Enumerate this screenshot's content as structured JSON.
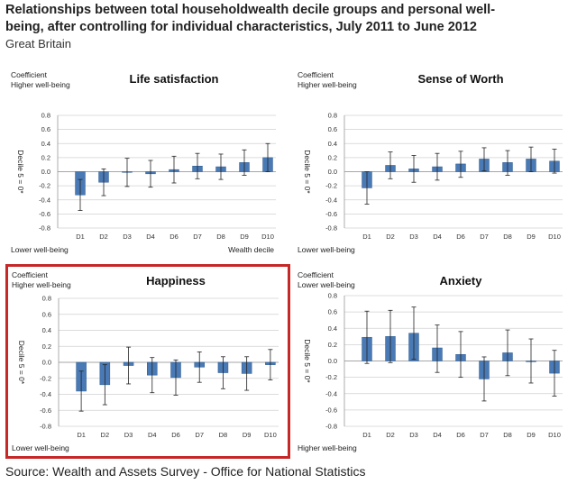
{
  "title": "Relationships between total householdwealth decile groups and personal well-being, after controlling for individual characteristics, July 2011 to June 2012",
  "subtitle": "Great Britain",
  "source": "Source: Wealth and Assets Survey - Office for National Statistics",
  "highlight_color": "#c62828",
  "bar_color": "#4a7ab5",
  "chart_data": [
    {
      "type": "bar",
      "title": "Life satisfaction",
      "ylabel": "Decile 5 = 0*",
      "top_label_1": "Coefficient",
      "top_label_2": "Higher well-being",
      "bottom_label": "Lower well-being",
      "xlabel": "Wealth decile",
      "categories": [
        "D1",
        "D2",
        "D3",
        "D4",
        "D6",
        "D7",
        "D8",
        "D9",
        "D10"
      ],
      "values": [
        -0.33,
        -0.15,
        -0.01,
        -0.03,
        0.03,
        0.08,
        0.07,
        0.13,
        0.2
      ],
      "error_low": [
        -0.55,
        -0.34,
        -0.21,
        -0.22,
        -0.16,
        -0.1,
        -0.11,
        -0.05,
        0.0
      ],
      "error_high": [
        -0.11,
        0.04,
        0.19,
        0.16,
        0.22,
        0.26,
        0.25,
        0.31,
        0.4
      ],
      "ylim": [
        -0.8,
        0.8
      ],
      "yticks": [
        0.8,
        0.6,
        0.4,
        0.2,
        0.0,
        -0.2,
        -0.4,
        -0.6,
        -0.8
      ],
      "ytick_labels": [
        "0.8",
        "0.6",
        "0.4",
        "0.2",
        "0.0",
        "-0.2",
        "-0.4",
        "-0.6",
        "-0.8"
      ],
      "highlighted": false
    },
    {
      "type": "bar",
      "title": "Sense of Worth",
      "ylabel": "Decile 5 = 0*",
      "top_label_1": "Coefficient",
      "top_label_2": "Higher well-being",
      "bottom_label": "Lower well-being",
      "xlabel": "",
      "categories": [
        "D1",
        "D2",
        "D3",
        "D4",
        "D6",
        "D7",
        "D8",
        "D9",
        "D10"
      ],
      "values": [
        -0.23,
        0.09,
        0.04,
        0.07,
        0.11,
        0.18,
        0.13,
        0.18,
        0.15
      ],
      "error_low": [
        -0.46,
        -0.1,
        -0.15,
        -0.12,
        -0.08,
        0.01,
        -0.05,
        0.0,
        -0.02
      ],
      "error_high": [
        0.0,
        0.28,
        0.23,
        0.26,
        0.29,
        0.34,
        0.3,
        0.35,
        0.32
      ],
      "ylim": [
        -0.8,
        0.8
      ],
      "yticks": [
        0.8,
        0.6,
        0.4,
        0.2,
        0.0,
        -0.2,
        -0.4,
        -0.6,
        -0.8
      ],
      "ytick_labels": [
        "0.8",
        "0.6",
        "0.4",
        "0.2",
        "0.0",
        "-0.2",
        "-0.4",
        "-0.6",
        "-0.8"
      ],
      "highlighted": false
    },
    {
      "type": "bar",
      "title": "Happiness",
      "ylabel": "Decile 5 = 0*",
      "top_label_1": "Coefficient",
      "top_label_2": "Higher well-being",
      "bottom_label": "Lower well-being",
      "xlabel": "",
      "categories": [
        "D1",
        "D2",
        "D3",
        "D4",
        "D6",
        "D7",
        "D8",
        "D9",
        "D10"
      ],
      "values": [
        -0.36,
        -0.28,
        -0.04,
        -0.16,
        -0.19,
        -0.06,
        -0.13,
        -0.14,
        -0.03
      ],
      "error_low": [
        -0.61,
        -0.53,
        -0.27,
        -0.38,
        -0.41,
        -0.25,
        -0.33,
        -0.35,
        -0.22
      ],
      "error_high": [
        -0.11,
        -0.03,
        0.19,
        0.06,
        0.03,
        0.13,
        0.07,
        0.07,
        0.16
      ],
      "ylim": [
        -0.8,
        0.8
      ],
      "yticks": [
        0.8,
        0.6,
        0.4,
        0.2,
        0.0,
        -0.2,
        -0.4,
        -0.6,
        -0.8
      ],
      "ytick_labels": [
        "0.8",
        "0.6",
        "0.4",
        "0.2",
        "0.0",
        "-0.2",
        "-0.4",
        "-0.6",
        "-0.8"
      ],
      "highlighted": true
    },
    {
      "type": "bar",
      "title": "Anxiety",
      "ylabel": "Decile 5 = 0*",
      "top_label_1": "Coefficient",
      "top_label_2": "Lower well-being",
      "bottom_label": "Higher well-being",
      "xlabel": "",
      "categories": [
        "D1",
        "D2",
        "D3",
        "D4",
        "D6",
        "D7",
        "D8",
        "D9",
        "D10"
      ],
      "values": [
        0.29,
        0.3,
        0.34,
        0.16,
        0.08,
        -0.22,
        0.1,
        -0.01,
        -0.15
      ],
      "error_low": [
        -0.03,
        -0.02,
        0.02,
        -0.14,
        -0.2,
        -0.49,
        -0.18,
        -0.27,
        -0.43
      ],
      "error_high": [
        0.61,
        0.62,
        0.66,
        0.44,
        0.36,
        0.05,
        0.38,
        0.27,
        0.13
      ],
      "ylim": [
        -0.8,
        0.8
      ],
      "yticks": [
        0.8,
        0.6,
        0.4,
        0.2,
        0.0,
        -0.2,
        -0.4,
        -0.6,
        -0.8
      ],
      "ytick_labels": [
        "0.8",
        "0.6",
        "0.4",
        "0.2",
        "0.0",
        "-0.2",
        "-0.4",
        "-0.6",
        "-0.8"
      ],
      "highlighted": false
    }
  ]
}
